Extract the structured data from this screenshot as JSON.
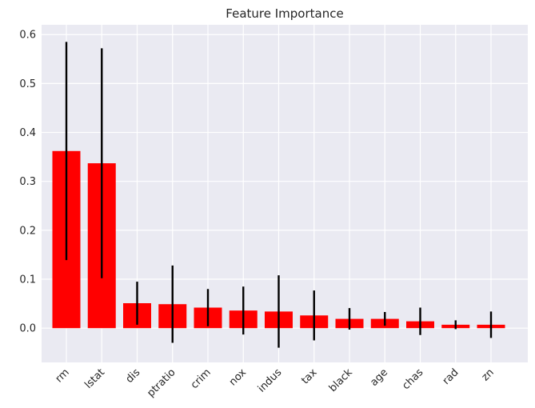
{
  "chart_data": {
    "type": "bar",
    "title": "Feature Importance",
    "xlabel": "",
    "ylabel": "",
    "categories": [
      "rm",
      "lstat",
      "dis",
      "ptratio",
      "crim",
      "nox",
      "indus",
      "tax",
      "black",
      "age",
      "chas",
      "rad",
      "zn"
    ],
    "values": [
      0.362,
      0.337,
      0.051,
      0.049,
      0.042,
      0.036,
      0.034,
      0.026,
      0.019,
      0.019,
      0.014,
      0.007,
      0.007
    ],
    "errors": [
      0.223,
      0.235,
      0.044,
      0.079,
      0.038,
      0.049,
      0.074,
      0.051,
      0.022,
      0.014,
      0.028,
      0.009,
      0.027
    ],
    "ylim": [
      -0.07,
      0.62
    ],
    "yticks": [
      0.0,
      0.1,
      0.2,
      0.3,
      0.4,
      0.5,
      0.6
    ],
    "ytick_labels": [
      "0.0",
      "0.1",
      "0.2",
      "0.3",
      "0.4",
      "0.5",
      "0.6"
    ],
    "grid": true,
    "x_tick_rotation_deg": 45,
    "colors": {
      "bar": "#ff0000",
      "error_bar": "#000000",
      "background": "#eaeaf2",
      "grid": "#ffffff"
    }
  }
}
